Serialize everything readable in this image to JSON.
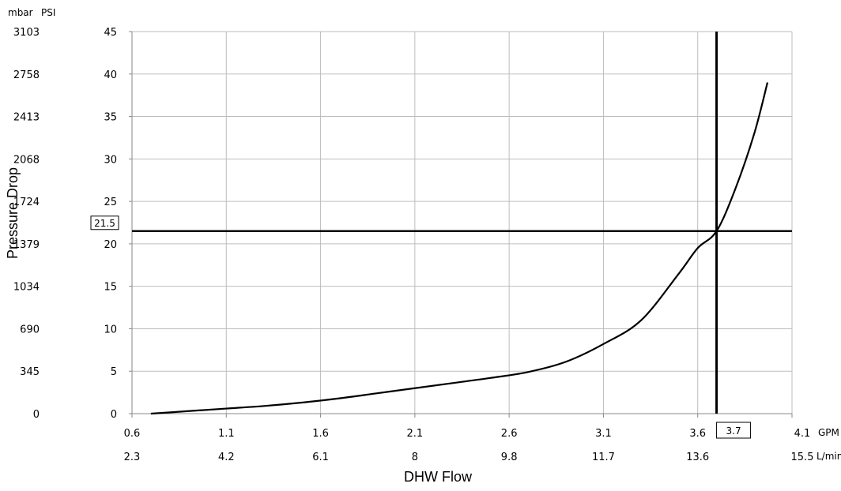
{
  "chart_data": {
    "type": "line",
    "xlabel": "DHW Flow",
    "ylabel": "Pressure Drop",
    "x_units": [
      "GPM",
      "L/min"
    ],
    "y_units": [
      "mbar",
      "PSI"
    ],
    "x_primary_ticks": [
      "0.6",
      "1.1",
      "1.6",
      "2.1",
      "2.6",
      "3.1",
      "3.6",
      "4.1"
    ],
    "x_secondary_ticks": [
      "2.3",
      "4.2",
      "6.1",
      "8",
      "9.8",
      "11.7",
      "13.6",
      "15.5"
    ],
    "y_primary_ticks": [
      "0",
      "5",
      "10",
      "15",
      "20",
      "25",
      "30",
      "35",
      "40",
      "45"
    ],
    "y_secondary_ticks": [
      "0",
      "345",
      "690",
      "1034",
      "1379",
      "1724",
      "2068",
      "2413",
      "2758",
      "3103"
    ],
    "xlim": [
      0.6,
      4.1
    ],
    "ylim": [
      0,
      45
    ],
    "grid": true,
    "series": [
      {
        "x": [
          0.7,
          0.9,
          1.1,
          1.3,
          1.5,
          1.7,
          1.9,
          2.1,
          2.3,
          2.5,
          2.7,
          2.9,
          3.1,
          3.3,
          3.5,
          3.6,
          3.7,
          3.8,
          3.9,
          3.97
        ],
        "y": [
          0,
          0.3,
          0.6,
          0.9,
          1.3,
          1.8,
          2.4,
          3.0,
          3.6,
          4.2,
          4.9,
          6.1,
          8.2,
          11.0,
          16.5,
          19.5,
          21.5,
          26.5,
          33.0,
          39.0
        ]
      }
    ],
    "reference_lines": [
      {
        "axis": "y",
        "value": 21.5,
        "label": "21.5"
      },
      {
        "axis": "x",
        "value": 3.7,
        "label": "3.7"
      }
    ]
  }
}
